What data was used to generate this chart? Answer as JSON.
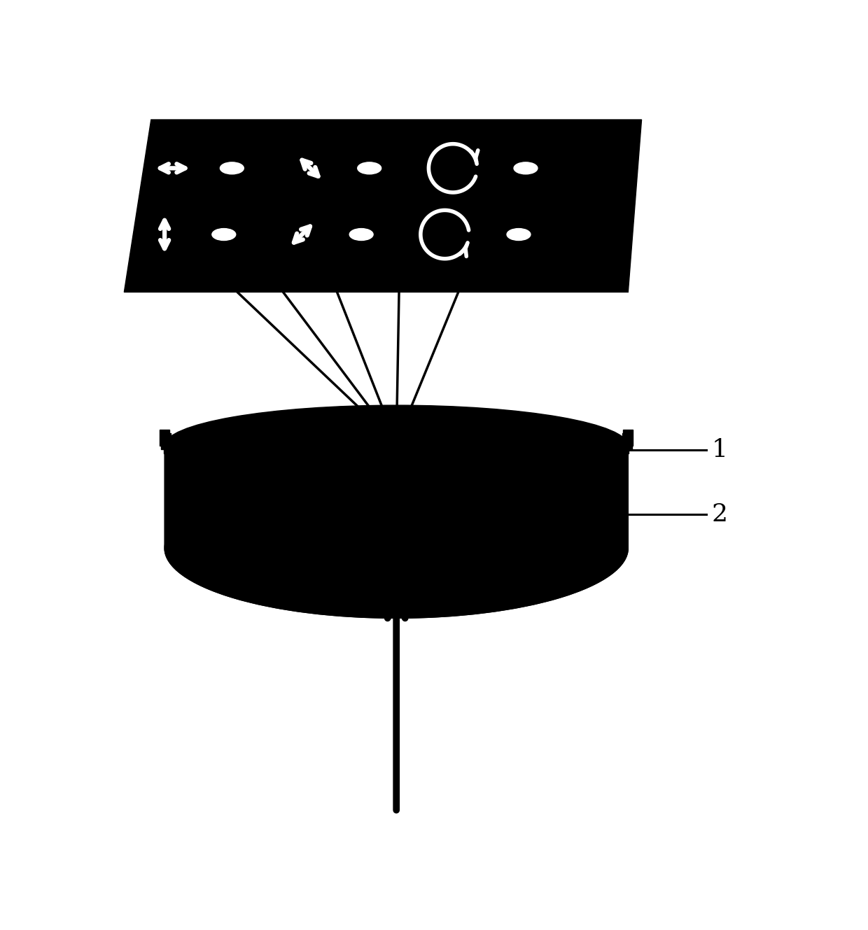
{
  "bg_color": "#ffffff",
  "black": "#000000",
  "white": "#ffffff",
  "fig_width": 12.4,
  "fig_height": 13.29,
  "dpi": 100,
  "label1": "1",
  "label2": "2"
}
